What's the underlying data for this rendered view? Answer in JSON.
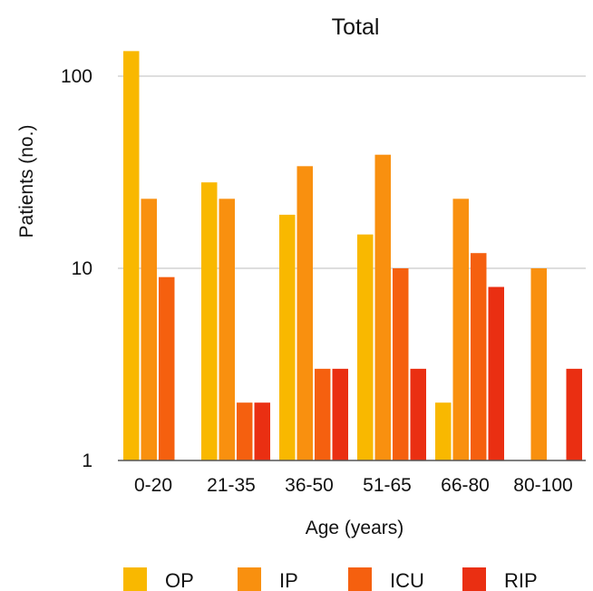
{
  "chart_data": {
    "type": "bar",
    "title": "Total",
    "xlabel": "Age (years)",
    "ylabel": "Patients (no.)",
    "yscale": "log",
    "ylim": [
      1,
      140
    ],
    "yticks": [
      1,
      10,
      100
    ],
    "ytick_labels": [
      "1",
      "10",
      "100"
    ],
    "grid": true,
    "legend_position": "bottom",
    "categories": [
      "0-20",
      "21-35",
      "36-50",
      "51-65",
      "66-80",
      "80-100"
    ],
    "series": [
      {
        "name": "OP",
        "color": "#F9B800",
        "values": [
          135,
          28,
          19,
          15,
          2,
          null
        ]
      },
      {
        "name": "IP",
        "color": "#F9900F",
        "values": [
          23,
          23,
          34,
          39,
          23,
          10
        ]
      },
      {
        "name": "ICU",
        "color": "#F5600F",
        "values": [
          9,
          2,
          3,
          10,
          12,
          null
        ]
      },
      {
        "name": "RIP",
        "color": "#EA2F12",
        "values": [
          null,
          2,
          3,
          3,
          8,
          3
        ]
      }
    ]
  }
}
